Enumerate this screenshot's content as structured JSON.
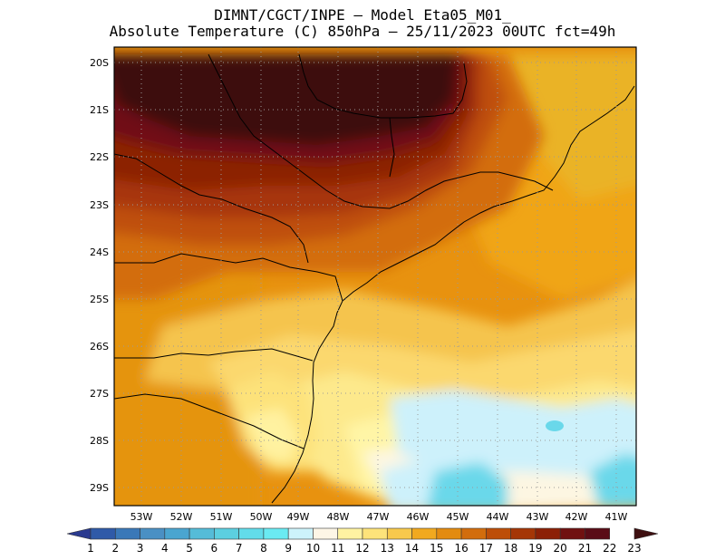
{
  "header": {
    "line1": "DIMNT/CGCT/INPE —  Model Eta05_M01_",
    "line2": "Absolute Temperature (C) 850hPa —  25/11/2023 00UTC fct=49h"
  },
  "axes": {
    "lat_labels": [
      "20S",
      "21S",
      "22S",
      "23S",
      "24S",
      "25S",
      "26S",
      "27S",
      "28S",
      "29S"
    ],
    "lon_labels": [
      "53W",
      "52W",
      "51W",
      "50W",
      "49W",
      "48W",
      "47W",
      "46W",
      "45W",
      "44W",
      "43W",
      "42W",
      "41W"
    ]
  },
  "colorbar": {
    "labels": [
      "1",
      "2",
      "3",
      "4",
      "5",
      "6",
      "7",
      "8",
      "9",
      "10",
      "11",
      "12",
      "13",
      "14",
      "15",
      "16",
      "17",
      "18",
      "19",
      "20",
      "21",
      "22",
      "23"
    ],
    "colors": [
      "#2a3a8f",
      "#2f5aa8",
      "#3a78b8",
      "#4a90c4",
      "#4aa5d0",
      "#55bcd8",
      "#5ccfe0",
      "#62dcea",
      "#6aeaf2",
      "#cdf3fb",
      "#fdf6e6",
      "#fff3a2",
      "#fde37a",
      "#f8c94c",
      "#f1a91f",
      "#e38b10",
      "#d26d0d",
      "#bd4e08",
      "#a53606",
      "#8c2006",
      "#701111",
      "#5a0c17",
      "#3e0f10"
    ]
  },
  "map_data": {
    "region": "South/Southeast Brazil, 19.8S-29.4S, 53.7W-40.6W",
    "variable": "Absolute Temperature at 850hPa (C)",
    "grid": "dotted graticule every 1 degree"
  }
}
